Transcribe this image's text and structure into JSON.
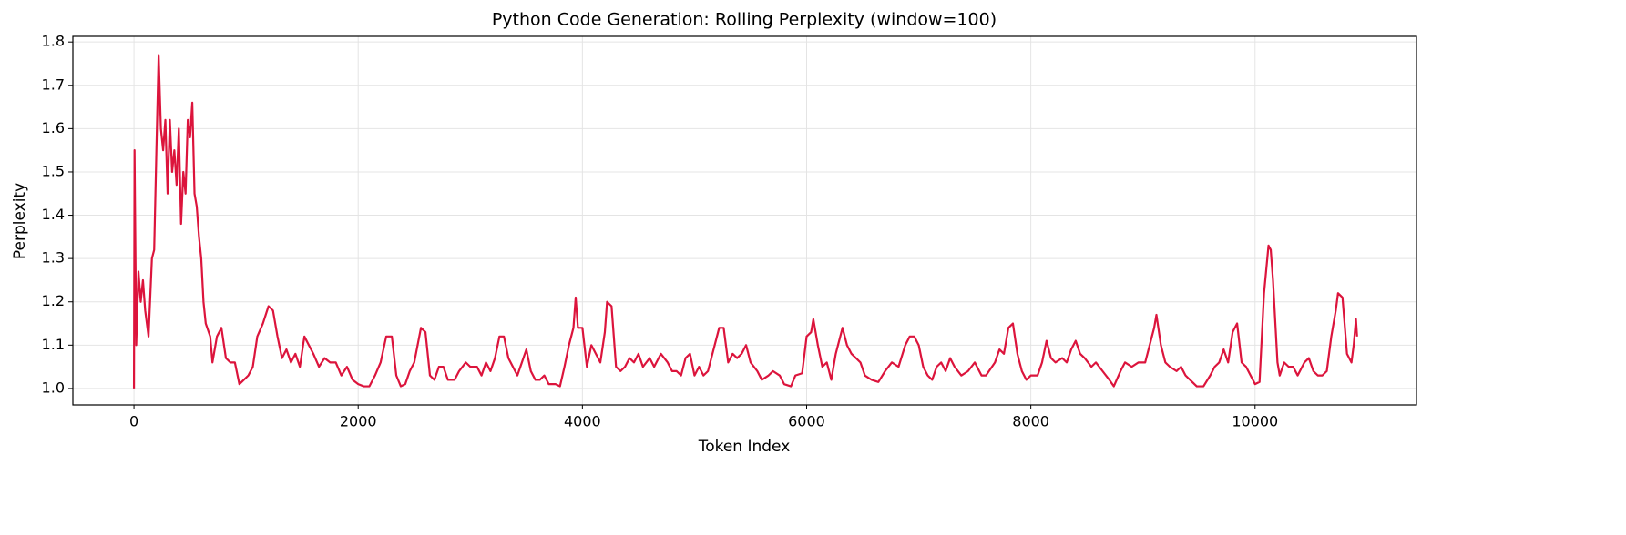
{
  "chart_data": {
    "type": "line",
    "title": "Python Code Generation: Rolling Perplexity (window=100)",
    "x_label": "Token Index",
    "y_label": "Perplexity",
    "x": [
      0,
      5,
      20,
      40,
      60,
      80,
      100,
      130,
      160,
      180,
      200,
      220,
      240,
      260,
      280,
      300,
      320,
      340,
      360,
      380,
      400,
      420,
      440,
      460,
      480,
      500,
      520,
      540,
      560,
      580,
      600,
      620,
      640,
      680,
      700,
      740,
      780,
      820,
      860,
      900,
      940,
      980,
      1020,
      1060,
      1100,
      1150,
      1200,
      1240,
      1280,
      1320,
      1360,
      1400,
      1440,
      1480,
      1520,
      1560,
      1600,
      1650,
      1700,
      1750,
      1800,
      1850,
      1900,
      1950,
      2000,
      2050,
      2100,
      2150,
      2200,
      2250,
      2300,
      2340,
      2380,
      2420,
      2460,
      2500,
      2560,
      2600,
      2640,
      2680,
      2720,
      2760,
      2800,
      2860,
      2900,
      2960,
      3000,
      3060,
      3100,
      3140,
      3180,
      3220,
      3260,
      3300,
      3340,
      3380,
      3420,
      3460,
      3500,
      3540,
      3580,
      3620,
      3660,
      3700,
      3760,
      3800,
      3840,
      3880,
      3920,
      3940,
      3960,
      4000,
      4040,
      4080,
      4120,
      4160,
      4200,
      4220,
      4260,
      4300,
      4340,
      4380,
      4420,
      4460,
      4500,
      4540,
      4600,
      4640,
      4700,
      4760,
      4800,
      4840,
      4880,
      4920,
      4960,
      5000,
      5040,
      5080,
      5120,
      5180,
      5220,
      5260,
      5300,
      5340,
      5380,
      5420,
      5460,
      5500,
      5560,
      5600,
      5660,
      5700,
      5760,
      5800,
      5860,
      5900,
      5960,
      6000,
      6040,
      6060,
      6100,
      6140,
      6180,
      6220,
      6260,
      6320,
      6360,
      6400,
      6440,
      6480,
      6520,
      6580,
      6640,
      6700,
      6760,
      6820,
      6880,
      6920,
      6960,
      7000,
      7040,
      7080,
      7120,
      7160,
      7200,
      7240,
      7280,
      7320,
      7380,
      7440,
      7500,
      7560,
      7600,
      7680,
      7720,
      7760,
      7800,
      7840,
      7880,
      7920,
      7960,
      8000,
      8060,
      8100,
      8140,
      8180,
      8220,
      8280,
      8320,
      8360,
      8400,
      8440,
      8480,
      8540,
      8580,
      8640,
      8700,
      8740,
      8800,
      8840,
      8900,
      8960,
      9020,
      9060,
      9100,
      9120,
      9160,
      9200,
      9240,
      9300,
      9340,
      9380,
      9420,
      9480,
      9540,
      9600,
      9640,
      9680,
      9720,
      9760,
      9800,
      9840,
      9880,
      9920,
      9960,
      10000,
      10040,
      10080,
      10120,
      10140,
      10160,
      10200,
      10220,
      10260,
      10300,
      10340,
      10380,
      10440,
      10480,
      10520,
      10560,
      10600,
      10640,
      10680,
      10720,
      10740,
      10780,
      10820,
      10860,
      10880,
      10900,
      10910
    ],
    "series": [
      {
        "color": "#dc143c",
        "values": [
          1.0,
          1.55,
          1.1,
          1.27,
          1.2,
          1.25,
          1.18,
          1.12,
          1.3,
          1.32,
          1.55,
          1.77,
          1.6,
          1.55,
          1.62,
          1.45,
          1.62,
          1.5,
          1.55,
          1.47,
          1.6,
          1.38,
          1.5,
          1.45,
          1.62,
          1.58,
          1.66,
          1.45,
          1.42,
          1.35,
          1.3,
          1.2,
          1.15,
          1.12,
          1.06,
          1.12,
          1.14,
          1.07,
          1.06,
          1.06,
          1.01,
          1.02,
          1.03,
          1.05,
          1.12,
          1.15,
          1.19,
          1.18,
          1.12,
          1.07,
          1.09,
          1.06,
          1.08,
          1.05,
          1.12,
          1.1,
          1.08,
          1.05,
          1.07,
          1.06,
          1.06,
          1.03,
          1.05,
          1.02,
          1.01,
          1.005,
          1.005,
          1.03,
          1.06,
          1.12,
          1.12,
          1.03,
          1.005,
          1.01,
          1.04,
          1.06,
          1.14,
          1.13,
          1.03,
          1.02,
          1.05,
          1.05,
          1.02,
          1.02,
          1.04,
          1.06,
          1.05,
          1.05,
          1.03,
          1.06,
          1.04,
          1.07,
          1.12,
          1.12,
          1.07,
          1.05,
          1.03,
          1.06,
          1.09,
          1.04,
          1.02,
          1.02,
          1.03,
          1.01,
          1.01,
          1.005,
          1.05,
          1.1,
          1.14,
          1.21,
          1.14,
          1.14,
          1.05,
          1.1,
          1.08,
          1.06,
          1.13,
          1.2,
          1.19,
          1.05,
          1.04,
          1.05,
          1.07,
          1.06,
          1.08,
          1.05,
          1.07,
          1.05,
          1.08,
          1.06,
          1.04,
          1.04,
          1.03,
          1.07,
          1.08,
          1.03,
          1.05,
          1.03,
          1.04,
          1.1,
          1.14,
          1.14,
          1.06,
          1.08,
          1.07,
          1.08,
          1.1,
          1.06,
          1.04,
          1.02,
          1.03,
          1.04,
          1.03,
          1.01,
          1.005,
          1.03,
          1.035,
          1.12,
          1.13,
          1.16,
          1.1,
          1.05,
          1.06,
          1.02,
          1.08,
          1.14,
          1.1,
          1.08,
          1.07,
          1.06,
          1.03,
          1.02,
          1.015,
          1.04,
          1.06,
          1.05,
          1.1,
          1.12,
          1.12,
          1.1,
          1.05,
          1.03,
          1.02,
          1.05,
          1.06,
          1.04,
          1.07,
          1.05,
          1.03,
          1.04,
          1.06,
          1.03,
          1.03,
          1.06,
          1.09,
          1.08,
          1.14,
          1.15,
          1.08,
          1.04,
          1.02,
          1.03,
          1.03,
          1.06,
          1.11,
          1.07,
          1.06,
          1.07,
          1.06,
          1.09,
          1.11,
          1.08,
          1.07,
          1.05,
          1.06,
          1.04,
          1.02,
          1.005,
          1.04,
          1.06,
          1.05,
          1.06,
          1.06,
          1.1,
          1.14,
          1.17,
          1.1,
          1.06,
          1.05,
          1.04,
          1.05,
          1.03,
          1.02,
          1.005,
          1.005,
          1.03,
          1.05,
          1.06,
          1.09,
          1.06,
          1.13,
          1.15,
          1.06,
          1.05,
          1.03,
          1.01,
          1.015,
          1.22,
          1.33,
          1.32,
          1.25,
          1.06,
          1.03,
          1.06,
          1.05,
          1.05,
          1.03,
          1.06,
          1.07,
          1.04,
          1.03,
          1.03,
          1.04,
          1.12,
          1.18,
          1.22,
          1.21,
          1.08,
          1.06,
          1.1,
          1.16,
          1.12
        ]
      }
    ],
    "xlim": [
      -545,
      11440
    ],
    "ylim": [
      0.962,
      1.813
    ],
    "xticks": [
      0,
      2000,
      4000,
      6000,
      8000,
      10000
    ],
    "yticks": [
      {
        "value": 1,
        "label": "1.0"
      },
      1.1,
      1.2,
      1.3,
      1.4,
      1.5,
      1.6,
      1.7,
      1.8
    ],
    "grid": true
  }
}
